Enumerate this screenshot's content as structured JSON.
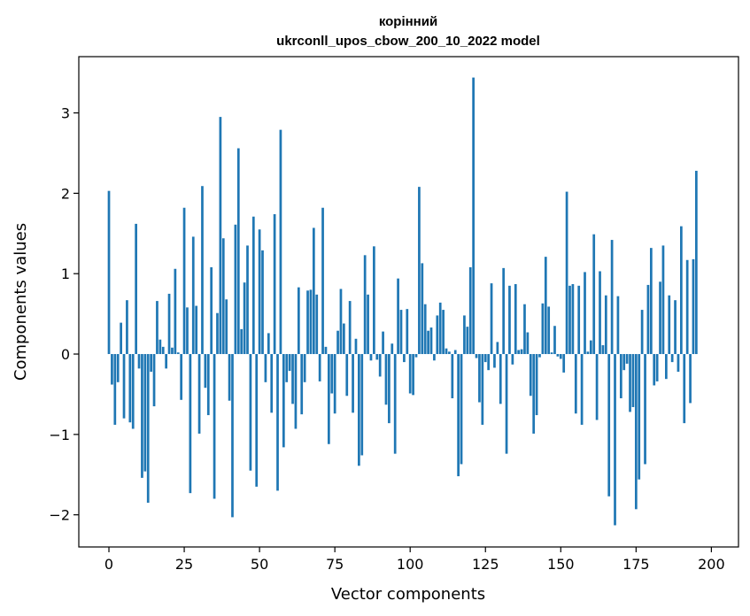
{
  "chart_data": {
    "type": "bar",
    "title_line1": "корінний",
    "title_line2": "ukrconll_upos_cbow_200_10_2022 model",
    "xlabel": "Vector components",
    "ylabel": "Components values",
    "xlim": [
      -10,
      209
    ],
    "ylim": [
      -2.4,
      3.7
    ],
    "xticks": [
      0,
      25,
      50,
      75,
      100,
      125,
      150,
      175,
      200
    ],
    "xtick_labels": [
      "0",
      "25",
      "50",
      "75",
      "100",
      "125",
      "150",
      "175",
      "200"
    ],
    "yticks": [
      -2,
      -1,
      0,
      1,
      2,
      3
    ],
    "ytick_labels": [
      "−2",
      "−1",
      "0",
      "1",
      "2",
      "3"
    ],
    "bar_color": "#1f77b4",
    "grid": false,
    "values": [
      2.03,
      -0.38,
      -0.88,
      -0.35,
      0.39,
      -0.8,
      0.67,
      -0.85,
      -0.93,
      1.62,
      -0.18,
      -1.54,
      -1.46,
      -1.85,
      -0.22,
      -0.65,
      0.66,
      0.18,
      0.09,
      -0.18,
      0.75,
      0.08,
      1.06,
      0.02,
      -0.57,
      1.82,
      0.58,
      -1.73,
      1.46,
      0.6,
      -0.99,
      2.09,
      -0.42,
      -0.76,
      1.08,
      -1.8,
      0.51,
      2.95,
      1.44,
      0.68,
      -0.58,
      -2.03,
      1.61,
      2.56,
      0.31,
      0.89,
      1.35,
      -1.45,
      1.71,
      -1.65,
      1.55,
      1.29,
      -0.35,
      0.26,
      -0.73,
      1.74,
      -1.7,
      2.79,
      -1.16,
      -0.35,
      -0.21,
      -0.62,
      -0.93,
      0.83,
      -0.75,
      -0.35,
      0.79,
      0.8,
      1.57,
      0.74,
      -0.34,
      1.82,
      0.09,
      -1.12,
      -0.49,
      -0.74,
      0.29,
      0.81,
      0.38,
      -0.52,
      0.66,
      -0.73,
      0.19,
      -1.39,
      -1.26,
      1.23,
      0.74,
      -0.08,
      1.34,
      -0.07,
      -0.28,
      0.28,
      -0.63,
      -0.86,
      0.13,
      -1.24,
      0.94,
      0.55,
      -0.1,
      0.56,
      -0.49,
      -0.51,
      -0.04,
      2.08,
      1.13,
      0.62,
      0.29,
      0.33,
      -0.08,
      0.48,
      0.64,
      0.55,
      0.07,
      0.03,
      -0.55,
      0.05,
      -1.52,
      -1.37,
      0.48,
      0.34,
      1.08,
      3.44,
      -0.05,
      -0.6,
      -0.88,
      -0.1,
      -0.2,
      0.88,
      -0.17,
      0.15,
      -0.62,
      1.07,
      -1.24,
      0.85,
      -0.13,
      0.87,
      0.05,
      0.06,
      0.62,
      0.27,
      -0.52,
      -0.99,
      -0.76,
      -0.04,
      0.63,
      1.21,
      0.59,
      0.02,
      0.35,
      -0.03,
      -0.06,
      -0.23,
      2.02,
      0.85,
      0.87,
      -0.74,
      0.85,
      -0.88,
      1.02,
      0.03,
      0.17,
      1.49,
      -0.82,
      1.03,
      0.11,
      0.73,
      -1.77,
      1.42,
      -2.13,
      0.72,
      -0.55,
      -0.2,
      -0.12,
      -0.72,
      -0.66,
      -1.93,
      -1.56,
      0.55,
      -1.37,
      0.86,
      1.32,
      -0.39,
      -0.34,
      0.9,
      1.35,
      -0.31,
      0.73,
      -0.1,
      0.67,
      -0.22,
      1.59,
      -0.86,
      1.17,
      -0.61,
      1.18,
      2.28
    ]
  }
}
